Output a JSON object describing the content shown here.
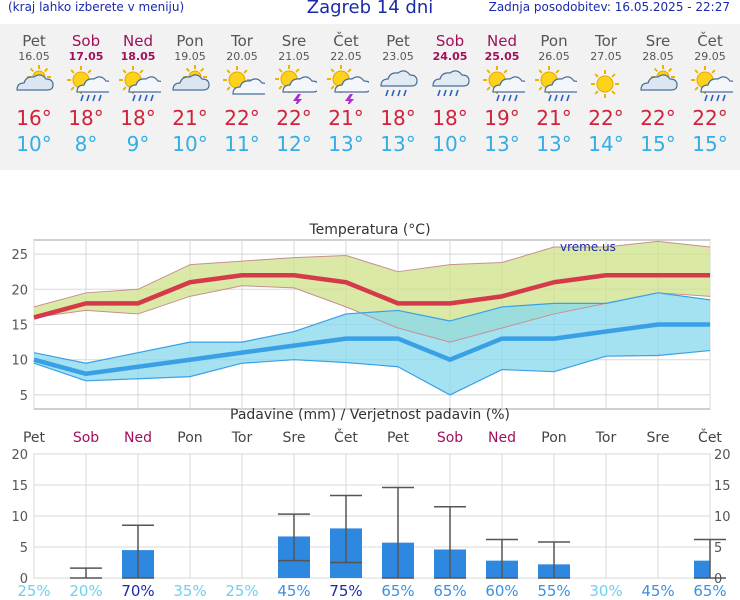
{
  "header": {
    "menu_hint": "(kraj lahko izberete v meniju)",
    "title": "Zagreb 14 dni",
    "updated": "Zadnja posodobitev: 16.05.2025 - 22:27"
  },
  "days": [
    {
      "name": "Pet",
      "date": "16.05",
      "weekend": false,
      "icon": "partly-cloudy-icon",
      "max": "16°",
      "min": "10°"
    },
    {
      "name": "Sob",
      "date": "17.05",
      "weekend": true,
      "icon": "sun-rain-icon",
      "max": "18°",
      "min": "8°"
    },
    {
      "name": "Ned",
      "date": "18.05",
      "weekend": true,
      "icon": "sun-rain-icon",
      "max": "18°",
      "min": "9°"
    },
    {
      "name": "Pon",
      "date": "19.05",
      "weekend": false,
      "icon": "partly-cloudy-icon",
      "max": "21°",
      "min": "10°"
    },
    {
      "name": "Tor",
      "date": "20.05",
      "weekend": false,
      "icon": "sun-cloud-icon",
      "max": "22°",
      "min": "11°"
    },
    {
      "name": "Sre",
      "date": "21.05",
      "weekend": false,
      "icon": "sun-thunder-icon",
      "max": "22°",
      "min": "12°"
    },
    {
      "name": "Čet",
      "date": "22.05",
      "weekend": false,
      "icon": "sun-thunder-icon",
      "max": "21°",
      "min": "13°"
    },
    {
      "name": "Pet",
      "date": "23.05",
      "weekend": false,
      "icon": "rain-cloud-icon",
      "max": "18°",
      "min": "13°"
    },
    {
      "name": "Sob",
      "date": "24.05",
      "weekend": true,
      "icon": "rain-cloud-icon",
      "max": "18°",
      "min": "10°"
    },
    {
      "name": "Ned",
      "date": "25.05",
      "weekend": true,
      "icon": "sun-rain-icon",
      "max": "19°",
      "min": "13°"
    },
    {
      "name": "Pon",
      "date": "26.05",
      "weekend": false,
      "icon": "sun-rain-icon",
      "max": "21°",
      "min": "13°"
    },
    {
      "name": "Tor",
      "date": "27.05",
      "weekend": false,
      "icon": "sun-icon",
      "max": "22°",
      "min": "14°"
    },
    {
      "name": "Sre",
      "date": "28.05",
      "weekend": false,
      "icon": "partly-cloudy-icon",
      "max": "22°",
      "min": "15°"
    },
    {
      "name": "Čet",
      "date": "29.05",
      "weekend": false,
      "icon": "sun-rain-icon",
      "max": "22°",
      "min": "15°"
    }
  ],
  "colors": {
    "max_line": "#d43a4a",
    "min_line": "#3aa0e6",
    "max_band": "#cfe28a",
    "min_band": "#86d8ee",
    "bar": "#2e88e0",
    "weekend": "#a0105a",
    "grid": "#d8d8d8",
    "plot_border": "#a0a0a0"
  },
  "chart_data": [
    {
      "type": "line",
      "title": "Temperatura (°C)",
      "watermark": "vreme.us",
      "x": [
        "16.05",
        "17.05",
        "18.05",
        "19.05",
        "20.05",
        "21.05",
        "22.05",
        "23.05",
        "24.05",
        "25.05",
        "26.05",
        "27.05",
        "28.05",
        "29.05"
      ],
      "ylim": [
        3,
        27
      ],
      "yticks": [
        5,
        10,
        15,
        20,
        25
      ],
      "series": [
        {
          "role": "max",
          "values": [
            16,
            18,
            18,
            21,
            22,
            22,
            21,
            18,
            18,
            19,
            21,
            22,
            22,
            22
          ]
        },
        {
          "role": "max-high",
          "values": [
            17.5,
            19.5,
            20,
            23.5,
            24,
            24.5,
            24.8,
            22.5,
            23.5,
            23.8,
            26,
            26,
            26.8,
            26
          ]
        },
        {
          "role": "max-low",
          "values": [
            16,
            17,
            16.5,
            19,
            20.5,
            20.2,
            17.5,
            14.5,
            12.5,
            14.5,
            16.5,
            18,
            19.5,
            19
          ]
        },
        {
          "role": "min",
          "values": [
            10,
            8,
            9,
            10,
            11,
            12,
            13,
            13,
            10,
            13,
            13,
            14,
            15,
            15
          ]
        },
        {
          "role": "min-high",
          "values": [
            11,
            9.5,
            11,
            12.5,
            12.5,
            14,
            16.5,
            17,
            15.5,
            17.5,
            18,
            18,
            19.5,
            18.5
          ]
        },
        {
          "role": "min-low",
          "values": [
            9.5,
            7,
            7.3,
            7.6,
            9.5,
            10,
            9.6,
            9,
            5,
            8.6,
            8.3,
            10.5,
            10.6,
            11.3
          ]
        }
      ]
    },
    {
      "type": "bar",
      "title": "Padavine (mm) / Verjetnost padavin (%)",
      "categories": [
        "Pet",
        "Sob",
        "Ned",
        "Pon",
        "Tor",
        "Sre",
        "Čet",
        "Pet",
        "Sob",
        "Ned",
        "Pon",
        "Tor",
        "Sre",
        "Čet"
      ],
      "weekend": [
        false,
        true,
        true,
        false,
        false,
        false,
        false,
        false,
        true,
        true,
        false,
        false,
        false,
        false
      ],
      "ylim": [
        0,
        20
      ],
      "yticks": [
        0,
        5,
        10,
        15,
        20
      ],
      "values": [
        0,
        0,
        4.5,
        0,
        0,
        6.7,
        8,
        5.7,
        4.6,
        2.8,
        2.2,
        0,
        0,
        2.8
      ],
      "err_low": [
        0,
        0,
        0,
        0,
        0,
        2.8,
        2.5,
        0,
        0,
        0,
        0,
        0,
        0,
        0
      ],
      "err_high": [
        0,
        1.6,
        8.5,
        0,
        0,
        10.3,
        13.3,
        14.6,
        11.5,
        6.2,
        5.8,
        0,
        0,
        6.2
      ],
      "probability": [
        "25%",
        "20%",
        "70%",
        "35%",
        "25%",
        "45%",
        "75%",
        "65%",
        "65%",
        "60%",
        "55%",
        "30%",
        "45%",
        "65%"
      ],
      "probability_values": [
        25,
        20,
        70,
        35,
        25,
        45,
        75,
        65,
        65,
        60,
        55,
        30,
        45,
        65
      ]
    }
  ]
}
